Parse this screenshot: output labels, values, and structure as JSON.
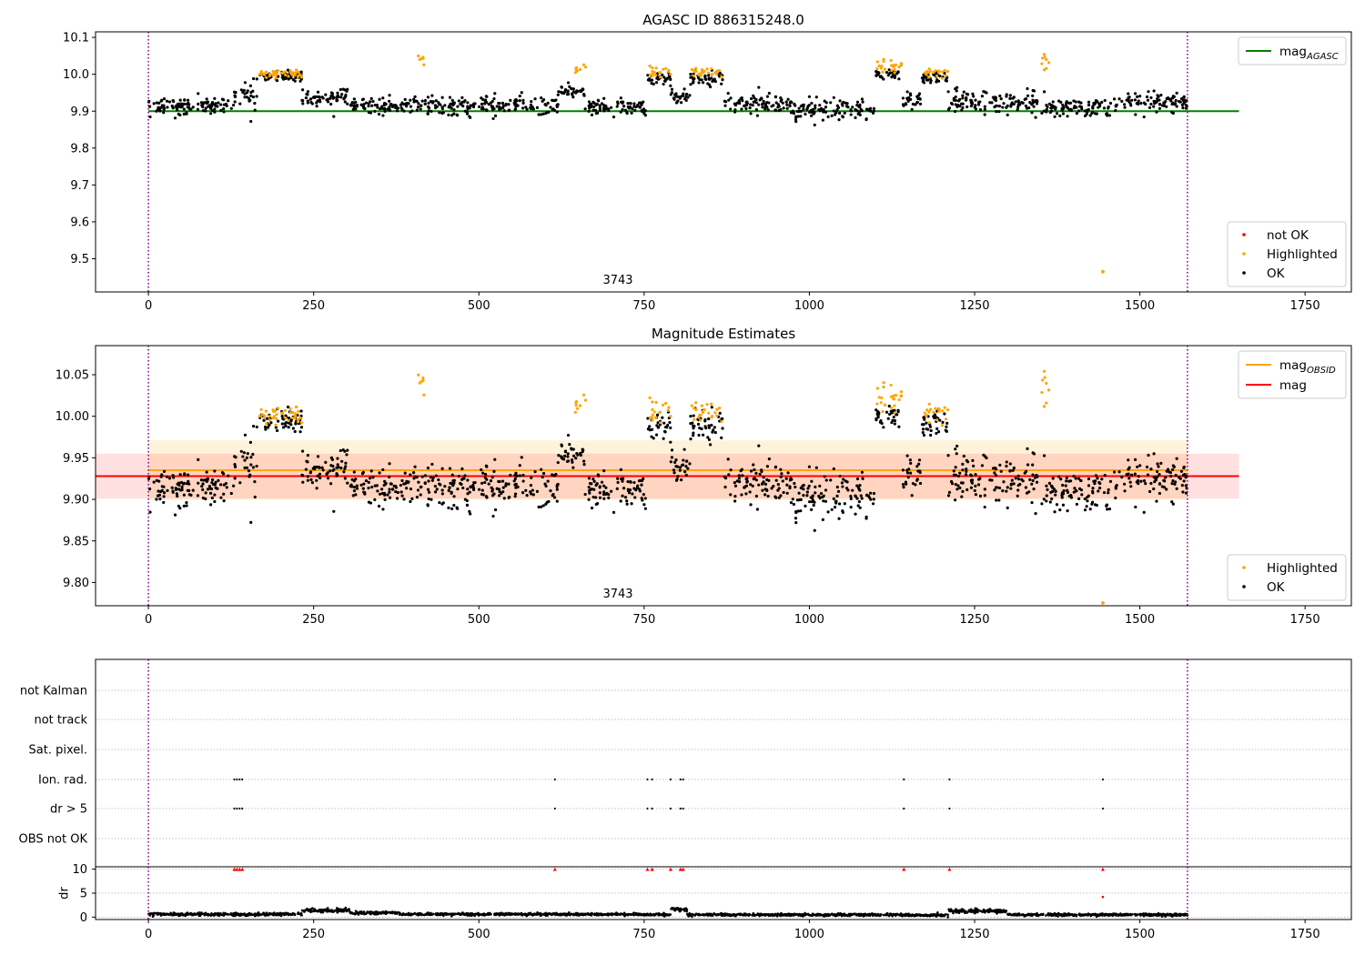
{
  "chart_data": [
    {
      "type": "scatter",
      "title": "AGASC ID 886315248.0",
      "xlabel": "",
      "ylabel": "",
      "xlim": [
        -80,
        1820
      ],
      "ylim": [
        9.41,
        10.115
      ],
      "xticks": [
        0,
        250,
        500,
        750,
        1000,
        1250,
        1500,
        1750
      ],
      "yticks": [
        9.5,
        9.6,
        9.7,
        9.8,
        9.9,
        10.0,
        10.1
      ],
      "ytick_labels": [
        "9.5",
        "9.6",
        "9.7",
        "9.8",
        "9.9",
        "10.0",
        "10.1"
      ],
      "vlines": [
        0,
        1572
      ],
      "annotation": {
        "text": "3743",
        "x": 786
      },
      "lines": [
        {
          "name": "mag_AGASC",
          "label_main": "mag",
          "label_sub": "AGASC",
          "y": 9.9,
          "x": [
            0,
            1650
          ],
          "color": "#008000"
        }
      ],
      "legend_lines_position": "upper right",
      "legend_points_position": "lower right",
      "legend_points": [
        {
          "name": "not OK",
          "color": "#ff0000"
        },
        {
          "name": "Highlighted",
          "color": "#ffa500"
        },
        {
          "name": "OK",
          "color": "#000000"
        }
      ],
      "outlier": {
        "x": 1444,
        "y": 9.465,
        "color": "#ffa500"
      },
      "series": [
        {
          "name": "OK",
          "color": "#000000",
          "segments": [
            {
              "x": [
                0,
                130
              ],
              "mean": 9.915,
              "sd": 0.011
            },
            {
              "x": [
                130,
                165
              ],
              "mean": 9.945,
              "sd": 0.018
            },
            {
              "x": [
                165,
                232
              ],
              "mean": 9.995,
              "sd": 0.007
            },
            {
              "x": [
                232,
                305
              ],
              "mean": 9.94,
              "sd": 0.013
            },
            {
              "x": [
                305,
                410
              ],
              "mean": 9.915,
              "sd": 0.01
            },
            {
              "x": [
                410,
                620
              ],
              "mean": 9.915,
              "sd": 0.014
            },
            {
              "x": [
                620,
                660
              ],
              "mean": 9.955,
              "sd": 0.008
            },
            {
              "x": [
                660,
                755
              ],
              "mean": 9.912,
              "sd": 0.011
            },
            {
              "x": [
                755,
                790
              ],
              "mean": 9.99,
              "sd": 0.01
            },
            {
              "x": [
                790,
                820
              ],
              "mean": 9.94,
              "sd": 0.01
            },
            {
              "x": [
                820,
                870
              ],
              "mean": 9.99,
              "sd": 0.01
            },
            {
              "x": [
                870,
                960
              ],
              "mean": 9.92,
              "sd": 0.014
            },
            {
              "x": [
                960,
                1100
              ],
              "mean": 9.905,
              "sd": 0.011
            },
            {
              "x": [
                1100,
                1140
              ],
              "mean": 10.0,
              "sd": 0.008
            },
            {
              "x": [
                1140,
                1170
              ],
              "mean": 9.93,
              "sd": 0.012
            },
            {
              "x": [
                1170,
                1210
              ],
              "mean": 9.99,
              "sd": 0.008
            },
            {
              "x": [
                1210,
                1350
              ],
              "mean": 9.925,
              "sd": 0.016
            },
            {
              "x": [
                1350,
                1460
              ],
              "mean": 9.908,
              "sd": 0.013
            },
            {
              "x": [
                1460,
                1572
              ],
              "mean": 9.925,
              "sd": 0.013
            }
          ]
        },
        {
          "name": "Highlighted",
          "color": "#ffa500",
          "segments": [
            {
              "x": [
                165,
                232
              ],
              "mean": 10.003,
              "sd": 0.006
            },
            {
              "x": [
                408,
                418
              ],
              "mean": 10.03,
              "sd": 0.012
            },
            {
              "x": [
                645,
                662
              ],
              "mean": 10.018,
              "sd": 0.008
            },
            {
              "x": [
                758,
                790
              ],
              "mean": 10.008,
              "sd": 0.01
            },
            {
              "x": [
                822,
                868
              ],
              "mean": 10.005,
              "sd": 0.006
            },
            {
              "x": [
                1098,
                1140
              ],
              "mean": 10.022,
              "sd": 0.01
            },
            {
              "x": [
                1172,
                1210
              ],
              "mean": 10.005,
              "sd": 0.006
            },
            {
              "x": [
                1350,
                1365
              ],
              "mean": 10.03,
              "sd": 0.012
            }
          ]
        }
      ]
    },
    {
      "type": "scatter",
      "title": "Magnitude Estimates",
      "xlabel": "",
      "ylabel": "",
      "xlim": [
        -80,
        1820
      ],
      "ylim": [
        9.772,
        10.085
      ],
      "xticks": [
        0,
        250,
        500,
        750,
        1000,
        1250,
        1500,
        1750
      ],
      "yticks": [
        9.8,
        9.85,
        9.9,
        9.95,
        10.0,
        10.05
      ],
      "ytick_labels": [
        "9.80",
        "9.85",
        "9.90",
        "9.95",
        "10.00",
        "10.05"
      ],
      "vlines": [
        0,
        1572
      ],
      "annotation": {
        "text": "3743",
        "x": 786
      },
      "lines": [
        {
          "name": "mag_OBSID",
          "label_main": "mag",
          "label_sub": "OBSID",
          "y": 9.935,
          "x": [
            0,
            1572
          ],
          "color": "#ffa500",
          "band": [
            9.899,
            9.971
          ]
        },
        {
          "name": "mag",
          "label_main": "mag",
          "label_sub": "",
          "y": 9.928,
          "x": [
            -80,
            1650
          ],
          "color": "#ff0000",
          "band": [
            9.901,
            9.955
          ]
        }
      ],
      "legend_lines_position": "upper right",
      "legend_points_position": "lower right",
      "legend_points": [
        {
          "name": "Highlighted",
          "color": "#ffa500"
        },
        {
          "name": "OK",
          "color": "#000000"
        }
      ],
      "outlier": {
        "x": 1444,
        "y": 9.775,
        "color": "#ffa500"
      },
      "series": [
        {
          "name": "OK",
          "color": "#000000",
          "segments": [
            {
              "x": [
                0,
                130
              ],
              "mean": 9.915,
              "sd": 0.011
            },
            {
              "x": [
                130,
                165
              ],
              "mean": 9.945,
              "sd": 0.018
            },
            {
              "x": [
                165,
                232
              ],
              "mean": 9.995,
              "sd": 0.007
            },
            {
              "x": [
                232,
                305
              ],
              "mean": 9.94,
              "sd": 0.013
            },
            {
              "x": [
                305,
                410
              ],
              "mean": 9.915,
              "sd": 0.01
            },
            {
              "x": [
                410,
                620
              ],
              "mean": 9.915,
              "sd": 0.014
            },
            {
              "x": [
                620,
                660
              ],
              "mean": 9.955,
              "sd": 0.008
            },
            {
              "x": [
                660,
                755
              ],
              "mean": 9.912,
              "sd": 0.011
            },
            {
              "x": [
                755,
                790
              ],
              "mean": 9.99,
              "sd": 0.01
            },
            {
              "x": [
                790,
                820
              ],
              "mean": 9.94,
              "sd": 0.01
            },
            {
              "x": [
                820,
                870
              ],
              "mean": 9.99,
              "sd": 0.01
            },
            {
              "x": [
                870,
                960
              ],
              "mean": 9.92,
              "sd": 0.014
            },
            {
              "x": [
                960,
                1100
              ],
              "mean": 9.905,
              "sd": 0.011
            },
            {
              "x": [
                1100,
                1140
              ],
              "mean": 10.0,
              "sd": 0.008
            },
            {
              "x": [
                1140,
                1170
              ],
              "mean": 9.93,
              "sd": 0.012
            },
            {
              "x": [
                1170,
                1210
              ],
              "mean": 9.99,
              "sd": 0.008
            },
            {
              "x": [
                1210,
                1350
              ],
              "mean": 9.925,
              "sd": 0.016
            },
            {
              "x": [
                1350,
                1460
              ],
              "mean": 9.908,
              "sd": 0.013
            },
            {
              "x": [
                1460,
                1572
              ],
              "mean": 9.925,
              "sd": 0.013
            }
          ]
        },
        {
          "name": "Highlighted",
          "color": "#ffa500",
          "segments": [
            {
              "x": [
                165,
                232
              ],
              "mean": 10.003,
              "sd": 0.006
            },
            {
              "x": [
                408,
                418
              ],
              "mean": 10.03,
              "sd": 0.012
            },
            {
              "x": [
                645,
                662
              ],
              "mean": 10.018,
              "sd": 0.008
            },
            {
              "x": [
                758,
                790
              ],
              "mean": 10.008,
              "sd": 0.01
            },
            {
              "x": [
                822,
                868
              ],
              "mean": 10.005,
              "sd": 0.006
            },
            {
              "x": [
                1098,
                1140
              ],
              "mean": 10.022,
              "sd": 0.01
            },
            {
              "x": [
                1172,
                1210
              ],
              "mean": 10.005,
              "sd": 0.006
            },
            {
              "x": [
                1350,
                1365
              ],
              "mean": 10.03,
              "sd": 0.012
            }
          ]
        }
      ]
    },
    {
      "type": "scatter",
      "title": "",
      "xlim": [
        -80,
        1820
      ],
      "xticks": [
        0,
        250,
        500,
        750,
        1000,
        1250,
        1500,
        1750
      ],
      "vlines": [
        0,
        1572
      ],
      "flags": {
        "categories": [
          "not Kalman",
          "not track",
          "Sat. pixel.",
          "Ion. rad.",
          "dr > 5",
          "OBS not OK"
        ],
        "points": {
          "Ion. rad.": [
            130,
            134,
            138,
            142,
            615,
            755,
            762,
            790,
            805,
            809,
            1143,
            1212,
            1444
          ],
          "dr > 5": [
            130,
            134,
            138,
            142,
            615,
            755,
            762,
            790,
            805,
            809,
            1143,
            1212,
            1444
          ]
        },
        "color": "#000000"
      },
      "dr": {
        "ylabel": "dr",
        "ylim": [
          -0.5,
          10.5
        ],
        "yticks": [
          0,
          5,
          10
        ],
        "ytick_labels": [
          "0",
          "5",
          "10"
        ],
        "clip_value": 10,
        "clipped_x": [
          130,
          134,
          138,
          142,
          615,
          755,
          762,
          790,
          805,
          809,
          1143,
          1212,
          1444
        ],
        "clipped_color": "#ff0000",
        "extra_points": [
          {
            "x": 1444,
            "y": 4.2,
            "color": "#ff0000"
          }
        ],
        "segments": [
          {
            "x": [
              0,
              232
            ],
            "mean": 0.6,
            "sd": 0.15
          },
          {
            "x": [
              232,
              305
            ],
            "mean": 1.4,
            "sd": 0.2
          },
          {
            "x": [
              305,
              380
            ],
            "mean": 0.9,
            "sd": 0.15
          },
          {
            "x": [
              380,
              740
            ],
            "mean": 0.6,
            "sd": 0.12
          },
          {
            "x": [
              740,
              790
            ],
            "mean": 0.5,
            "sd": 0.12
          },
          {
            "x": [
              790,
              815
            ],
            "mean": 1.6,
            "sd": 0.2
          },
          {
            "x": [
              815,
              1140
            ],
            "mean": 0.5,
            "sd": 0.12
          },
          {
            "x": [
              1140,
              1210
            ],
            "mean": 0.4,
            "sd": 0.12
          },
          {
            "x": [
              1210,
              1300
            ],
            "mean": 1.3,
            "sd": 0.2
          },
          {
            "x": [
              1300,
              1572
            ],
            "mean": 0.5,
            "sd": 0.12
          }
        ]
      }
    }
  ]
}
